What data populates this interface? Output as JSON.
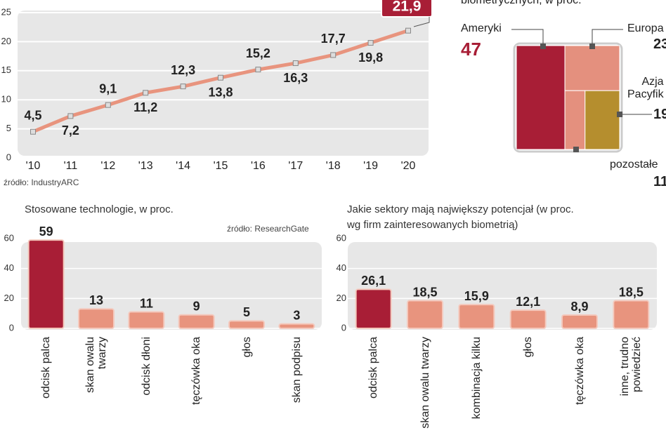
{
  "chart_data": [
    {
      "type": "line",
      "categories": [
        "'10",
        "'11",
        "'12",
        "'13",
        "'14",
        "'15",
        "'16",
        "'17",
        "'18",
        "'19",
        "'20"
      ],
      "values": [
        4.5,
        7.2,
        9.1,
        11.2,
        12.3,
        13.8,
        15.2,
        16.3,
        17.7,
        19.8,
        21.9
      ],
      "value_labels": [
        "4,5",
        "7,2",
        "9,1",
        "11,2",
        "12,3",
        "13,8",
        "15,2",
        "16,3",
        "17,7",
        "19,8",
        "21,9"
      ],
      "color": "#e8947e",
      "ylim": [
        0,
        25
      ],
      "yticks": [
        0,
        5,
        10,
        15,
        20,
        25
      ],
      "grid": true,
      "source": "źródło: IndustryARC"
    },
    {
      "type": "treemap",
      "subtitle": "biometrycznych, w proc.",
      "categories": [
        "Ameryki",
        "Europa",
        "Azja\nPacyfik",
        "pozostałe"
      ],
      "values": [
        47,
        23,
        19,
        11
      ],
      "colors": [
        "#a81e36",
        "#e4907e",
        "#b58e2e",
        "#e4907e"
      ]
    },
    {
      "type": "bar",
      "title": "Stosowane technologie, w proc.",
      "source": "źródło: ResearchGate",
      "categories": [
        "odcisk palca",
        "skan owalu\ntwarzy",
        "odcisk dłoni",
        "tęczówka oka",
        "głos",
        "skan podpisu"
      ],
      "values": [
        59,
        13,
        11,
        9,
        5,
        3
      ],
      "colors": [
        "#a81e36",
        "#e8947e",
        "#e8947e",
        "#e8947e",
        "#e8947e",
        "#e8947e"
      ],
      "ylim": [
        0,
        60
      ],
      "yticks": [
        0,
        20,
        40,
        60
      ]
    },
    {
      "type": "bar",
      "title": "Jakie sektory mają największy potencjał (w proc.\nwg firm zainteresowanych biometrią)",
      "categories": [
        "odcisk palca",
        "skan owalu twarzy",
        "kombinacja kilku",
        "głos",
        "tęczówka oka",
        "inne, trudno\npowiedzieć"
      ],
      "values": [
        26.1,
        18.5,
        15.9,
        12.1,
        8.9,
        18.5
      ],
      "value_labels": [
        "26,1",
        "18,5",
        "15,9",
        "12,1",
        "8,9",
        "18,5"
      ],
      "colors": [
        "#a81e36",
        "#e8947e",
        "#e8947e",
        "#e8947e",
        "#e8947e",
        "#e8947e"
      ],
      "ylim": [
        0,
        60
      ],
      "yticks": [
        0,
        20,
        40,
        60
      ]
    }
  ]
}
